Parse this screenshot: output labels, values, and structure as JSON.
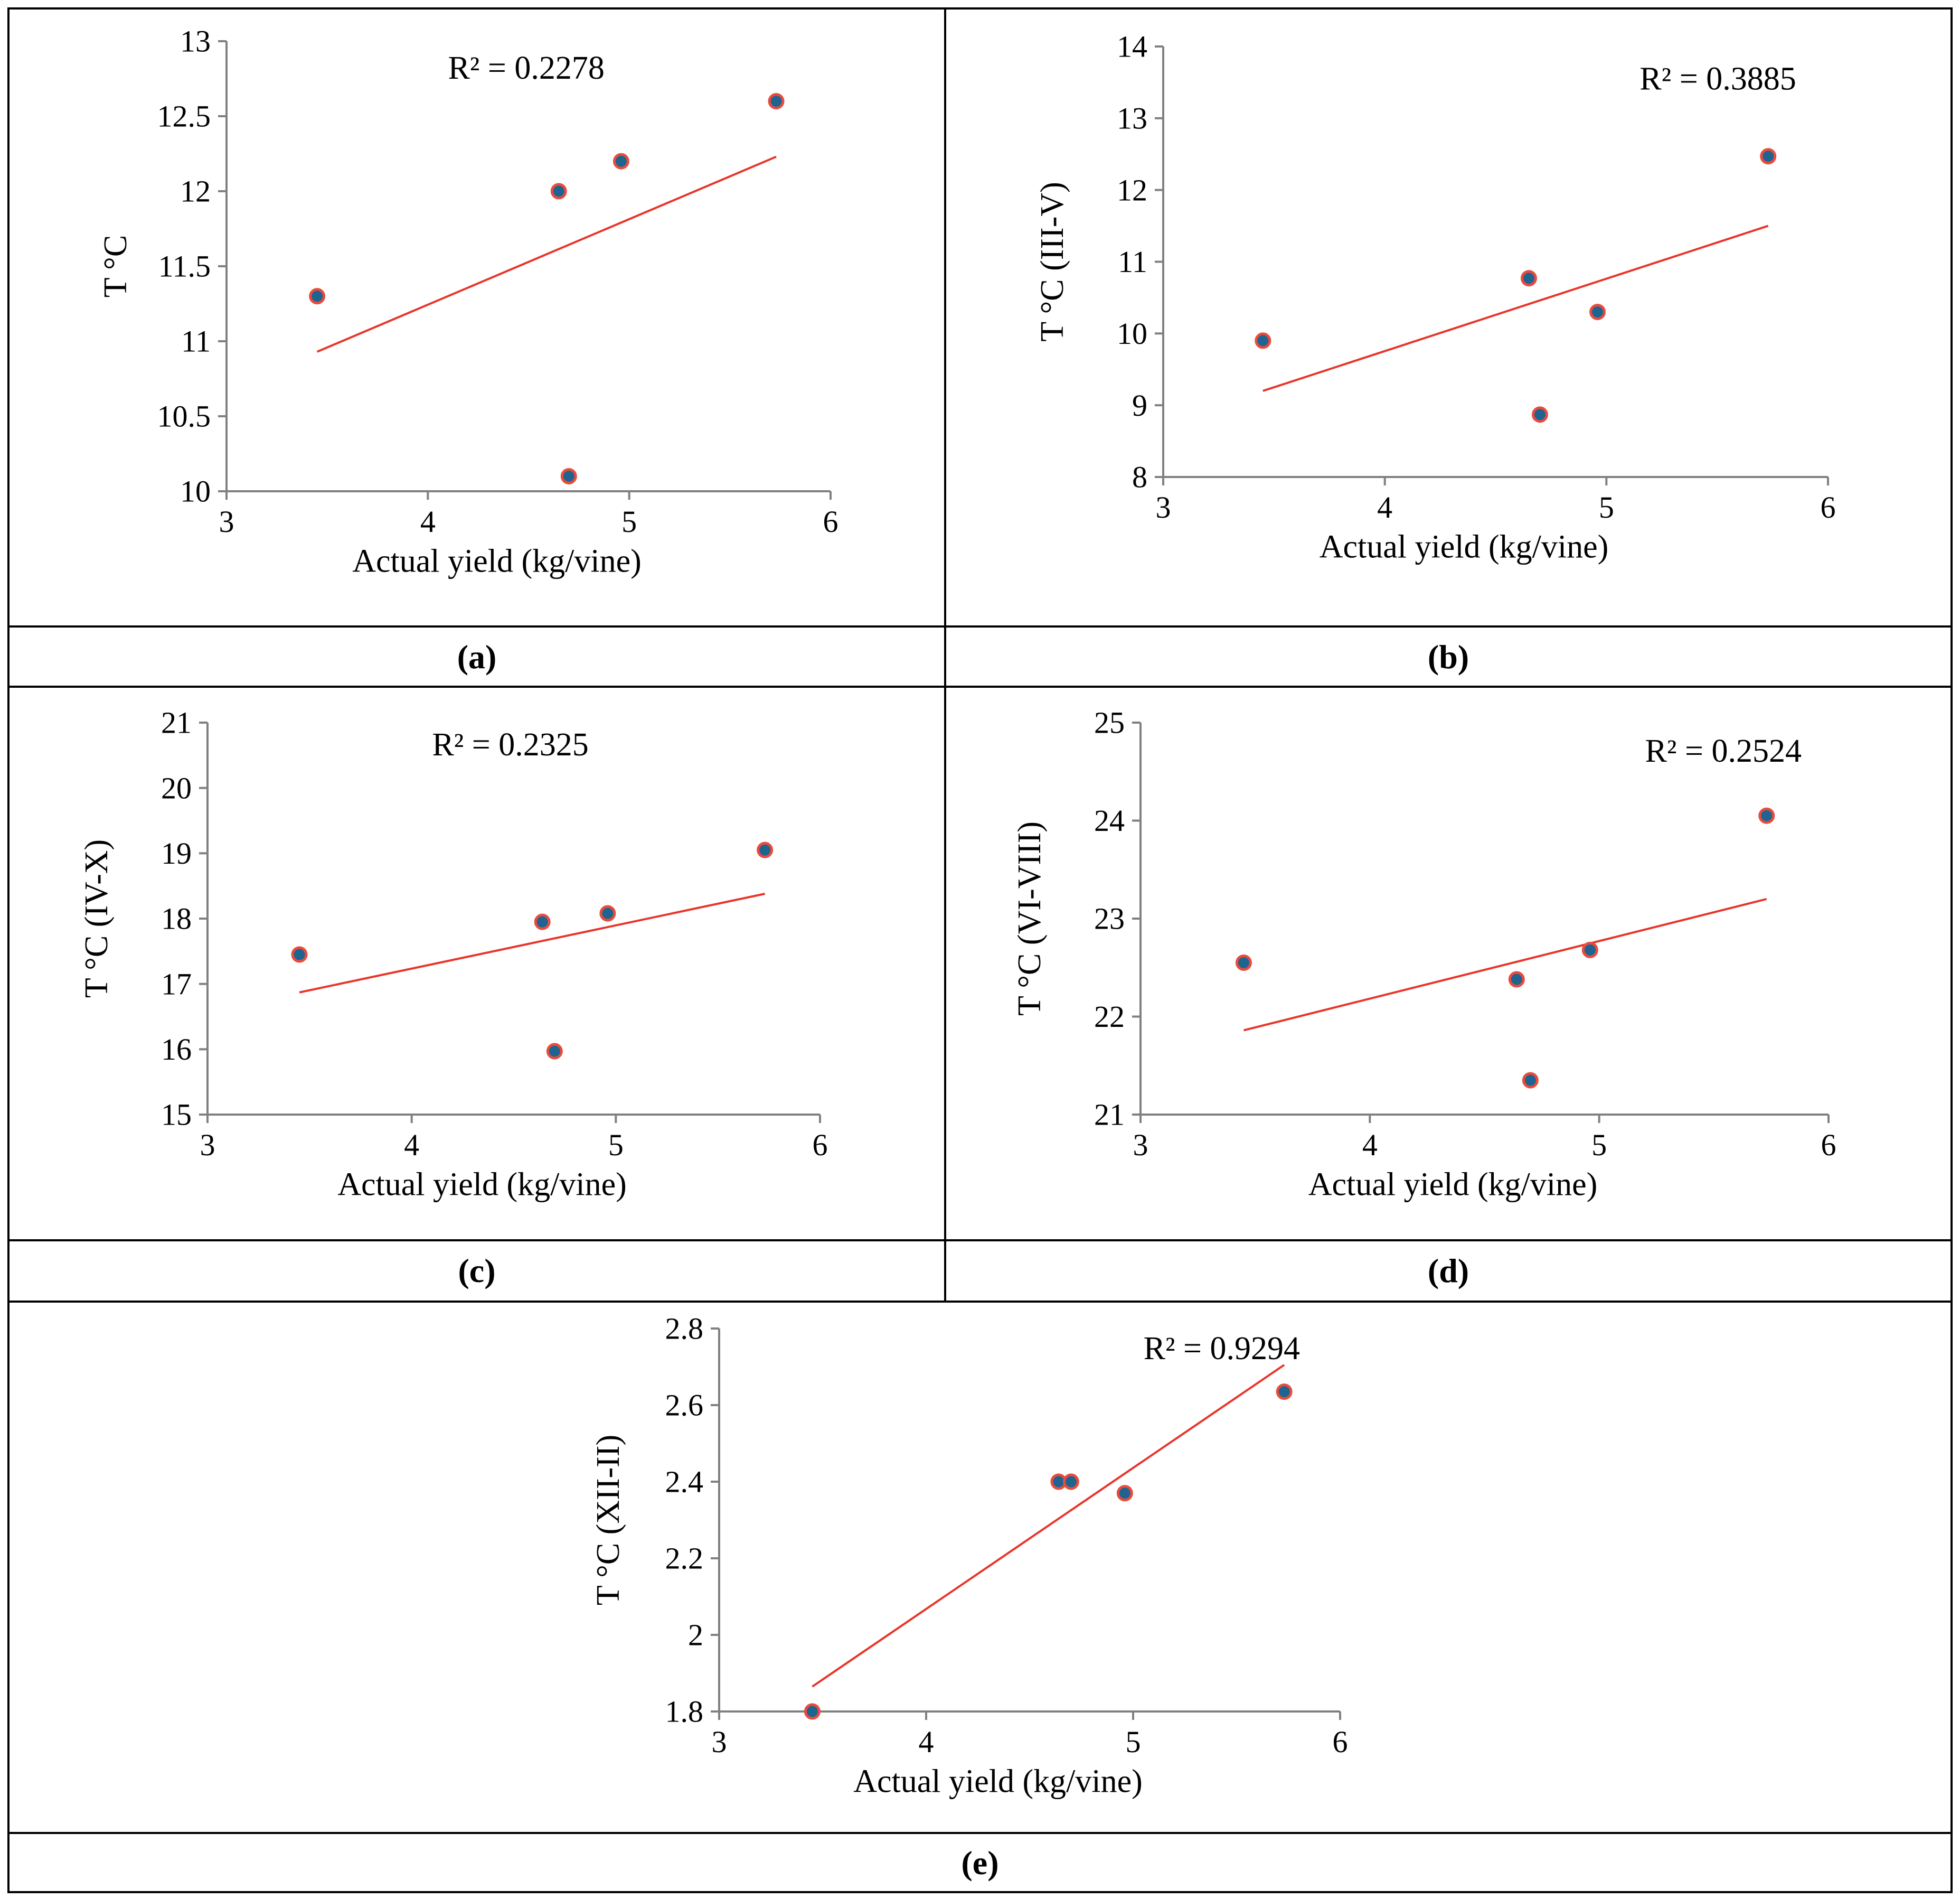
{
  "panels": [
    {
      "id": "a",
      "caption_open": "(",
      "caption_letter": "a",
      "caption_close": ")"
    },
    {
      "id": "b",
      "caption_open": "(",
      "caption_letter": "b",
      "caption_close": ")"
    },
    {
      "id": "c",
      "caption_open": "",
      "caption_letter": "(c)",
      "caption_close": ""
    },
    {
      "id": "d",
      "caption_open": "",
      "caption_letter": "(d)",
      "caption_close": ""
    },
    {
      "id": "e",
      "caption_open": "",
      "caption_letter": "(e)",
      "caption_close": ""
    }
  ],
  "colors": {
    "point_fill": "#1f6391",
    "point_stroke": "#e84c3d",
    "trendline": "#e8352b",
    "axis": "#808080",
    "frame": "#000000"
  },
  "chart_data": [
    {
      "type": "scatter",
      "panel": "a",
      "xlabel": "Actual yield (kg/vine)",
      "ylabel": "T °C",
      "xlim": [
        3,
        6
      ],
      "ylim": [
        10,
        13
      ],
      "xticks": [
        3,
        4,
        5,
        6
      ],
      "xtick_labels": [
        "3",
        "4",
        "5",
        "6"
      ],
      "yticks": [
        10,
        10.5,
        11,
        11.5,
        12,
        12.5,
        13
      ],
      "ytick_labels": [
        "10",
        "10.5",
        "11",
        "11.5",
        "12",
        "12.5",
        "13"
      ],
      "x": [
        3.45,
        4.65,
        4.7,
        4.96,
        5.73
      ],
      "y": [
        11.3,
        12.0,
        10.1,
        12.2,
        12.6
      ],
      "trendline": {
        "x": [
          3.45,
          5.73
        ],
        "y": [
          10.93,
          12.23
        ]
      },
      "r2_label": "R² = 0.2278",
      "r2_at": [
        4.1,
        12.75
      ],
      "grid": false
    },
    {
      "type": "scatter",
      "panel": "b",
      "xlabel": "Actual yield (kg/vine)",
      "ylabel": "T °C (III-V)",
      "xlim": [
        3,
        6
      ],
      "ylim": [
        8,
        14
      ],
      "xticks": [
        3,
        4,
        5,
        6
      ],
      "xtick_labels": [
        "3",
        "4",
        "5",
        "6"
      ],
      "yticks": [
        8,
        9,
        10,
        11,
        12,
        13,
        14
      ],
      "ytick_labels": [
        "8",
        "9",
        "10",
        "11",
        "12",
        "13",
        "14"
      ],
      "x": [
        3.45,
        4.65,
        4.7,
        4.96,
        5.73
      ],
      "y": [
        9.9,
        10.77,
        8.87,
        10.3,
        12.47
      ],
      "trendline": {
        "x": [
          3.45,
          5.73
        ],
        "y": [
          9.2,
          11.5
        ]
      },
      "r2_label": "R² = 0.3885",
      "r2_at": [
        5.15,
        13.4
      ],
      "grid": false
    },
    {
      "type": "scatter",
      "panel": "c",
      "xlabel": "Actual yield (kg/vine)",
      "ylabel": "T °C (IV-X)",
      "xlim": [
        3,
        6
      ],
      "ylim": [
        15,
        21
      ],
      "xticks": [
        3,
        4,
        5,
        6
      ],
      "xtick_labels": [
        "3",
        "4",
        "5",
        "6"
      ],
      "yticks": [
        15,
        16,
        17,
        18,
        19,
        20,
        21
      ],
      "ytick_labels": [
        "15",
        "16",
        "17",
        "18",
        "19",
        "20",
        "21"
      ],
      "x": [
        3.45,
        4.64,
        4.7,
        4.96,
        5.73
      ],
      "y": [
        17.45,
        17.95,
        15.97,
        18.08,
        19.05
      ],
      "trendline": {
        "x": [
          3.45,
          5.73
        ],
        "y": [
          16.87,
          18.38
        ]
      },
      "r2_label": "R² = 0.2325",
      "r2_at": [
        4.1,
        20.5
      ],
      "grid": false
    },
    {
      "type": "scatter",
      "panel": "d",
      "xlabel": "Actual yield (kg/vine)",
      "ylabel": "T °C (VI-VIII)",
      "xlim": [
        3,
        6
      ],
      "ylim": [
        21,
        25
      ],
      "xticks": [
        3,
        4,
        5,
        6
      ],
      "xtick_labels": [
        "3",
        "4",
        "5",
        "6"
      ],
      "yticks": [
        21,
        22,
        23,
        24,
        25
      ],
      "ytick_labels": [
        "21",
        "22",
        "23",
        "24",
        "25"
      ],
      "x": [
        3.45,
        4.64,
        4.7,
        4.96,
        5.73
      ],
      "y": [
        22.55,
        22.38,
        21.35,
        22.68,
        24.05
      ],
      "trendline": {
        "x": [
          3.45,
          5.73
        ],
        "y": [
          21.86,
          23.2
        ]
      },
      "r2_label": "R² = 0.2524",
      "r2_at": [
        5.2,
        24.6
      ],
      "grid": false
    },
    {
      "type": "scatter",
      "panel": "e",
      "xlabel": "Actual yield (kg/vine)",
      "ylabel": "T °C (XII-II)",
      "xlim": [
        3,
        6
      ],
      "ylim": [
        1.8,
        2.8
      ],
      "xticks": [
        3,
        4,
        5,
        6
      ],
      "xtick_labels": [
        "3",
        "4",
        "5",
        "6"
      ],
      "yticks": [
        1.8,
        2,
        2.2,
        2.4,
        2.6,
        2.8
      ],
      "ytick_labels": [
        "1.8",
        "2",
        "2.2",
        "2.4",
        "2.6",
        "2.8"
      ],
      "x": [
        3.45,
        4.64,
        4.7,
        4.96,
        5.73
      ],
      "y": [
        1.8,
        2.4,
        2.4,
        2.37,
        2.635
      ],
      "trendline": {
        "x": [
          3.45,
          5.73
        ],
        "y": [
          1.865,
          2.705
        ]
      },
      "r2_label": "R² = 0.9294",
      "r2_at": [
        5.05,
        2.72
      ],
      "grid": false
    }
  ]
}
